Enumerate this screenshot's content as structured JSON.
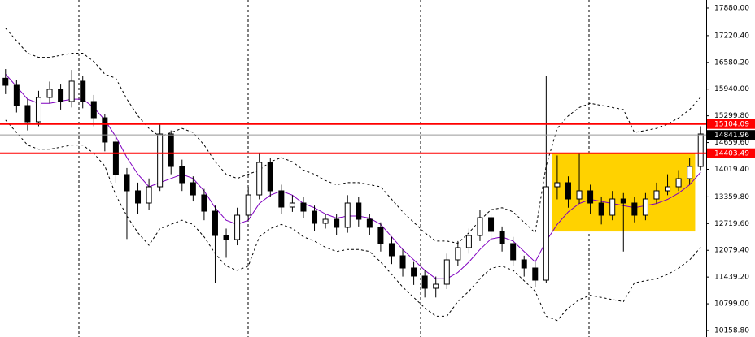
{
  "chart_data": {
    "type": "candlestick",
    "open": [
      16200,
      16032,
      15546,
      15157,
      15741,
      15935,
      15643,
      16130,
      15643,
      15254,
      14671,
      13893,
      13504,
      13212,
      13601,
      14865,
      14087,
      13698,
      13406,
      13017,
      12434,
      12337,
      12920,
      13406,
      14184,
      13504,
      13115,
      13212,
      13017,
      12726,
      12823,
      12629,
      13212,
      12823,
      12629,
      12240,
      11948,
      11656,
      11462,
      11170,
      11267,
      11851,
      12143,
      12434,
      12862,
      12532,
      12240,
      11851,
      11656,
      11364,
      13601,
      13698,
      13309,
      13504,
      13212,
      12920,
      13309,
      13212,
      12920,
      13309,
      13504,
      13601,
      13795,
      14087
    ],
    "high": [
      16420,
      16150,
      15700,
      15900,
      16120,
      16050,
      16400,
      16250,
      15800,
      15350,
      14800,
      14050,
      13700,
      13800,
      15100,
      14950,
      14250,
      13850,
      13550,
      13150,
      12600,
      13100,
      13600,
      14400,
      14300,
      13650,
      13400,
      13350,
      13150,
      12950,
      12950,
      13400,
      13350,
      12950,
      12750,
      12400,
      12100,
      11800,
      11600,
      11450,
      12000,
      12300,
      12600,
      13050,
      12950,
      12650,
      12400,
      11950,
      11800,
      16250,
      14350,
      13850,
      14400,
      13650,
      13350,
      13500,
      13450,
      13350,
      13450,
      13700,
      13900,
      14000,
      14300,
      15050
    ],
    "low": [
      15820,
      15380,
      14950,
      15050,
      15600,
      15450,
      15500,
      15480,
      15050,
      14450,
      13700,
      12350,
      12950,
      13050,
      13500,
      13900,
      13500,
      13250,
      12800,
      11300,
      11900,
      12200,
      12800,
      13300,
      13350,
      12950,
      13000,
      12850,
      12550,
      12600,
      12450,
      12500,
      12650,
      12450,
      12050,
      11750,
      11450,
      11250,
      10950,
      10950,
      11150,
      11700,
      12000,
      12300,
      12350,
      12050,
      11700,
      11450,
      11200,
      11300,
      13300,
      13100,
      13200,
      12950,
      12700,
      12800,
      12050,
      12750,
      12800,
      13200,
      13400,
      13500,
      13650,
      14000
    ],
    "close": [
      16032,
      15546,
      15157,
      15741,
      15935,
      15643,
      16130,
      15643,
      15254,
      14671,
      13893,
      13504,
      13212,
      13601,
      14865,
      14087,
      13698,
      13406,
      13017,
      12434,
      12337,
      12920,
      13406,
      14184,
      13504,
      13115,
      13212,
      13017,
      12726,
      12823,
      12629,
      13212,
      12823,
      12629,
      12240,
      11948,
      11656,
      11462,
      11170,
      11267,
      11851,
      12143,
      12434,
      12862,
      12532,
      12240,
      11851,
      11656,
      11364,
      13601,
      13698,
      13309,
      13504,
      13212,
      12920,
      13309,
      13212,
      12920,
      13309,
      13504,
      13601,
      13795,
      14087,
      14865
    ],
    "up_color": "#ffffff",
    "down_color": "#000000",
    "wick_color": "#000000",
    "indicators": [
      {
        "color": "#8000c0",
        "dash": false,
        "values": [
          16300,
          16000,
          15700,
          15600,
          15600,
          15650,
          15700,
          15700,
          15500,
          15200,
          14800,
          14300,
          13900,
          13600,
          13700,
          13800,
          13900,
          13800,
          13500,
          13100,
          12800,
          12700,
          12800,
          13200,
          13400,
          13500,
          13400,
          13200,
          13100,
          12950,
          12850,
          12900,
          12900,
          12850,
          12700,
          12400,
          12100,
          11850,
          11600,
          11400,
          11400,
          11550,
          11800,
          12100,
          12350,
          12400,
          12300,
          12050,
          11800,
          12300,
          12700,
          13000,
          13200,
          13300,
          13250,
          13200,
          13150,
          13100,
          13150,
          13200,
          13300,
          13450,
          13650,
          13950
        ]
      },
      {
        "color": "#000000",
        "dash": true,
        "values": [
          17400,
          17100,
          16800,
          16700,
          16700,
          16750,
          16800,
          16800,
          16600,
          16300,
          16200,
          15700,
          15300,
          15000,
          14800,
          14900,
          15000,
          14900,
          14600,
          14200,
          13900,
          13800,
          13900,
          14000,
          14200,
          14300,
          14200,
          14000,
          13900,
          13750,
          13650,
          13700,
          13700,
          13650,
          13600,
          13300,
          13000,
          12750,
          12500,
          12300,
          12300,
          12250,
          12500,
          12800,
          13050,
          13100,
          13000,
          12750,
          12500,
          14100,
          15000,
          15300,
          15500,
          15600,
          15550,
          15500,
          15450,
          14900,
          14950,
          15000,
          15100,
          15250,
          15450,
          15750
        ]
      },
      {
        "color": "#000000",
        "dash": true,
        "values": [
          15200,
          14900,
          14600,
          14500,
          14500,
          14550,
          14600,
          14600,
          14400,
          14100,
          13400,
          12900,
          12500,
          12200,
          12600,
          12700,
          12800,
          12700,
          12400,
          12000,
          11700,
          11600,
          11700,
          12400,
          12600,
          12700,
          12600,
          12400,
          12300,
          12150,
          12050,
          12100,
          12100,
          12050,
          11800,
          11500,
          11200,
          10950,
          10700,
          10500,
          10500,
          10850,
          11100,
          11400,
          11650,
          11700,
          11600,
          11350,
          11100,
          10500,
          10400,
          10700,
          10900,
          11000,
          10950,
          10900,
          10850,
          11300,
          11350,
          11400,
          11500,
          11650,
          11850,
          12150
        ]
      }
    ],
    "zone": {
      "start": 50,
      "end": 62,
      "top": 14403.49,
      "bottom": 12530,
      "color": "#ffd200"
    },
    "price_lines": [
      {
        "value": 15104.09,
        "label": "15104.09",
        "color": "#ff0000"
      },
      {
        "value": 14403.49,
        "label": "14403.49",
        "color": "#ff0000"
      },
      {
        "value": 14841.96,
        "label": "14841.96",
        "color": "#000000"
      }
    ],
    "ylim": [
      10003,
      18074
    ],
    "yticks": [
      {
        "value": 17880,
        "label": "17880.00"
      },
      {
        "value": 17220.4,
        "label": "17220.40"
      },
      {
        "value": 16580.2,
        "label": "16580.20"
      },
      {
        "value": 15940,
        "label": "15940.00"
      },
      {
        "value": 15299.8,
        "label": "15299.80"
      },
      {
        "value": 14659.6,
        "label": "14659.60"
      },
      {
        "value": 14019.4,
        "label": "14019.40"
      },
      {
        "value": 13359.8,
        "label": "13359.80"
      },
      {
        "value": 12719.6,
        "label": "12719.60"
      },
      {
        "value": 12079.4,
        "label": "12079.40"
      },
      {
        "value": 11439.2,
        "label": "11439.20"
      },
      {
        "value": 10799,
        "label": "10799.00"
      },
      {
        "value": 10158.8,
        "label": "10158.80"
      }
    ]
  }
}
